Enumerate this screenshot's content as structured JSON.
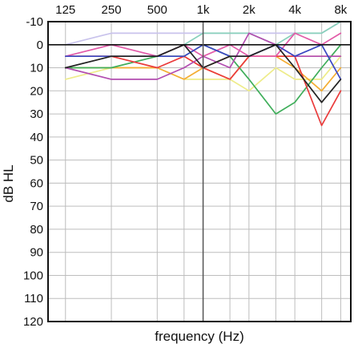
{
  "chart_data": {
    "type": "line",
    "xlabel": "frequency (Hz)",
    "ylabel": "dB HL",
    "x_ticks": [
      "125",
      "250",
      "500",
      "1k",
      "2k",
      "4k",
      "8k"
    ],
    "x_values_hz": [
      125,
      250,
      500,
      750,
      1000,
      1500,
      2000,
      3000,
      4000,
      6000,
      8000
    ],
    "y_ticks": [
      -10,
      0,
      10,
      20,
      30,
      40,
      50,
      60,
      70,
      80,
      90,
      100,
      110,
      120
    ],
    "ylim": [
      -10,
      120
    ],
    "y_inverted": true,
    "x_scale": "log",
    "grid": true,
    "series": [
      {
        "color": "#c9c3ec",
        "values": [
          0,
          -5,
          -5,
          -5,
          -5,
          -5,
          -5,
          -5,
          -5,
          -5,
          -10
        ]
      },
      {
        "color": "#88d0bb",
        "values": [
          5,
          5,
          5,
          0,
          -5,
          -5,
          -5,
          0,
          -5,
          -5,
          -10
        ]
      },
      {
        "color": "#ef8e57",
        "values": [
          5,
          5,
          5,
          5,
          10,
          5,
          5,
          5,
          5,
          5,
          5
        ]
      },
      {
        "color": "#eeec8a",
        "values": [
          15,
          10,
          10,
          15,
          15,
          15,
          20,
          10,
          15,
          15,
          5
        ]
      },
      {
        "color": "#f4ad33",
        "values": [
          10,
          10,
          10,
          15,
          10,
          15,
          5,
          5,
          10,
          20,
          10
        ]
      },
      {
        "color": "#3fae5a",
        "values": [
          10,
          10,
          5,
          5,
          0,
          5,
          15,
          30,
          25,
          10,
          0
        ]
      },
      {
        "color": "#ea3b3b",
        "values": [
          5,
          5,
          10,
          5,
          10,
          15,
          5,
          5,
          5,
          35,
          20
        ]
      },
      {
        "color": "#b24db0",
        "values": [
          10,
          15,
          15,
          10,
          5,
          10,
          -5,
          0,
          5,
          5,
          5
        ]
      },
      {
        "color": "#e25aa8",
        "values": [
          5,
          0,
          5,
          0,
          5,
          0,
          5,
          5,
          -5,
          0,
          -5
        ]
      },
      {
        "color": "#3a47c2",
        "values": [
          5,
          5,
          5,
          5,
          0,
          5,
          5,
          0,
          5,
          0,
          15
        ]
      },
      {
        "color": "#222222",
        "values": [
          10,
          5,
          5,
          0,
          10,
          5,
          5,
          0,
          10,
          25,
          15
        ]
      }
    ]
  }
}
